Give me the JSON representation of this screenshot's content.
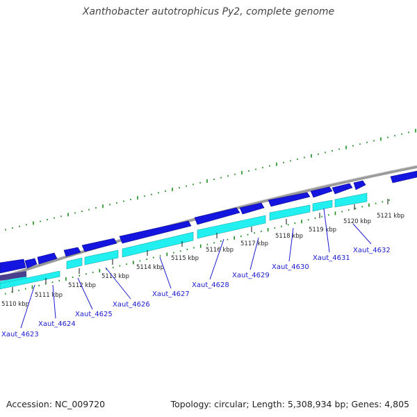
{
  "title": "Xanthobacter autotrophicus Py2, complete genome",
  "footer": {
    "accession": "Accession: NC_009720",
    "topology": "Topology: circular; Length: 5,308,934 bp; Genes: 4,805"
  },
  "kbp_labels": [
    "5110 kbp",
    "5111 kbp",
    "5112 kbp",
    "5113 kbp",
    "5114 kbp",
    "5115 kbp",
    "5116 kbp",
    "5117 kbp",
    "5118 kbp",
    "5119 kbp",
    "5120 kbp",
    "5121 kbp"
  ],
  "gene_labels": [
    "Xaut_4623",
    "Xaut_4624",
    "Xaut_4625",
    "Xaut_4626",
    "Xaut_4627",
    "Xaut_4628",
    "Xaut_4629",
    "Xaut_4630",
    "Xaut_4631",
    "Xaut_4632"
  ],
  "colors": {
    "backbone": "#8c8c8c",
    "cds": "#1515e0",
    "gene": "#22f0f0",
    "rna": "#4a3f8c",
    "gc_ticks": "#1a8a1a",
    "gene_label": "#1a1ad0"
  }
}
